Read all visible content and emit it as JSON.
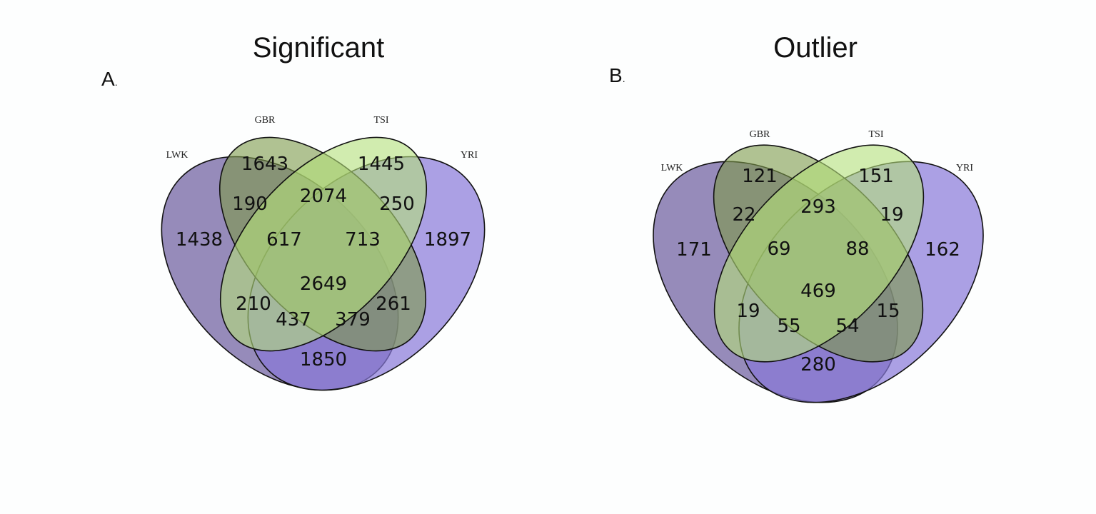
{
  "colors": {
    "LWK": "#6a5a9c",
    "GBR": "#7d9a4a",
    "TSI": "#b4df7a",
    "YRI": "#8878d9",
    "background": "#fdfefe"
  },
  "panels": [
    {
      "title": "Significant",
      "letter": "A",
      "sets": [
        "LWK",
        "GBR",
        "TSI",
        "YRI"
      ],
      "counts": {
        "LWK_only": "1438",
        "GBR_only": "1643",
        "TSI_only": "1445",
        "YRI_only": "1897",
        "LWK_GBR": "190",
        "GBR_TSI": "2074",
        "TSI_YRI": "250",
        "LWK_GBR_TSI": "617",
        "GBR_TSI_YRI": "713",
        "all": "2649",
        "LWK_TSI": "210",
        "GBR_YRI": "261",
        "LWK_TSI_YRI": "437",
        "LWK_GBR_YRI": "379",
        "LWK_YRI": "1850"
      }
    },
    {
      "title": "Outlier",
      "letter": "B",
      "sets": [
        "LWK",
        "GBR",
        "TSI",
        "YRI"
      ],
      "counts": {
        "LWK_only": "171",
        "GBR_only": "121",
        "TSI_only": "151",
        "YRI_only": "162",
        "LWK_GBR": "22",
        "GBR_TSI": "293",
        "TSI_YRI": "19",
        "LWK_GBR_TSI": "69",
        "GBR_TSI_YRI": "88",
        "all": "469",
        "LWK_TSI": "19",
        "GBR_YRI": "15",
        "LWK_TSI_YRI": "55",
        "LWK_GBR_YRI": "54",
        "LWK_YRI": "280"
      }
    }
  ]
}
